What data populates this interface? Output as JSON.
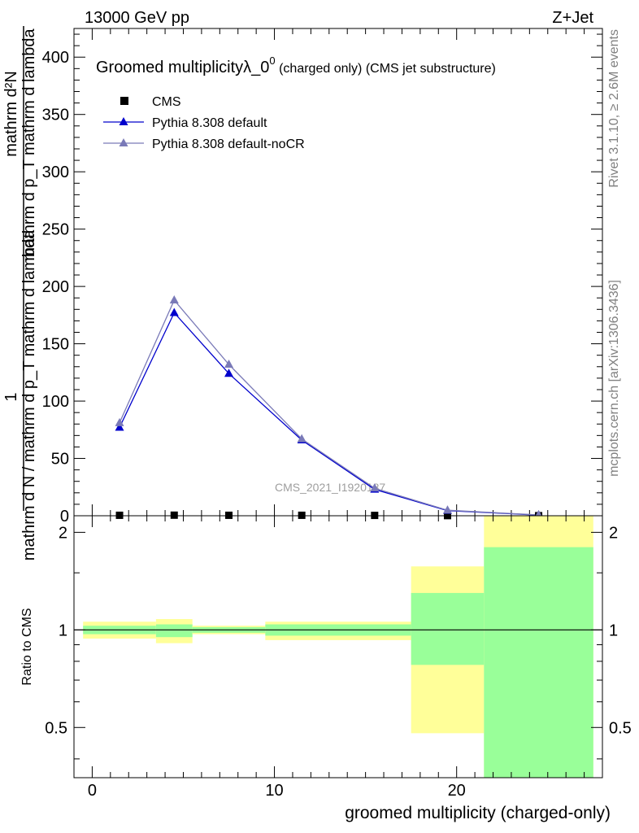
{
  "header": {
    "left": "13000 GeV pp",
    "right": "Z+Jet"
  },
  "side_labels": {
    "rivet": "Rivet 3.1.10, ≥ 2.6M events",
    "mcplots": "mcplots.cern.ch [arXiv:1306.3436]"
  },
  "watermark": "CMS_2021_I1920187",
  "chart_data": [
    {
      "type": "line",
      "title_main": "Groomed multiplicityλ_0",
      "title_sup": "0",
      "title_tail": " (charged only) (CMS jet substructure)",
      "ylabel_top": "mathrm d²N",
      "ylabel_top_sub": "mathrm d p_T mathrm d lambda",
      "ylabel_bottom": "1",
      "ylabel_bottom_sub": "mathrm d N / mathrm d p_T mathrm d lambda",
      "xlim": [
        -1,
        28
      ],
      "ylim": [
        0,
        425
      ],
      "x_ticks": [
        0,
        10,
        20
      ],
      "y_ticks": [
        0,
        50,
        100,
        150,
        200,
        250,
        300,
        350,
        400
      ],
      "grid": false,
      "legend_position": "top-left",
      "series": [
        {
          "name": "CMS",
          "color": "#000000",
          "marker": "square",
          "x": [
            1.5,
            4.5,
            7.5,
            11.5,
            15.5,
            19.5,
            24.5
          ],
          "y": [
            0.4,
            0.5,
            0.4,
            0.4,
            0.3,
            0.1,
            0.05
          ]
        },
        {
          "name": "Pythia 8.308 default",
          "color": "#0000cc",
          "marker": "triangle",
          "x": [
            1.5,
            4.5,
            7.5,
            11.5,
            15.5,
            19.5,
            24.5
          ],
          "y": [
            77,
            177,
            124,
            66,
            23,
            4.5,
            0.6
          ]
        },
        {
          "name": "Pythia 8.308 default-noCR",
          "color": "#7a7ab8",
          "marker": "triangle",
          "x": [
            1.5,
            4.5,
            7.5,
            11.5,
            15.5,
            19.5,
            24.5
          ],
          "y": [
            81,
            188,
            132,
            67,
            24,
            4.8,
            0.7
          ]
        }
      ]
    },
    {
      "type": "area",
      "ylabel": "Ratio to CMS",
      "xlabel": "groomed multiplicity (charged-only)",
      "xlim": [
        -1,
        28
      ],
      "ylim": [
        0.35,
        2.25
      ],
      "y_ticks": [
        0.5,
        1,
        2
      ],
      "x_ticks": [
        0,
        10,
        20
      ],
      "reference_line": 1,
      "band_colors": {
        "inner": "#99ff99",
        "outer": "#ffff99"
      },
      "bins": [
        {
          "x_low": -0.5,
          "x_high": 3.5,
          "inner": [
            0.97,
            1.03
          ],
          "outer": [
            0.94,
            1.06
          ]
        },
        {
          "x_low": 3.5,
          "x_high": 5.5,
          "inner": [
            0.95,
            1.04
          ],
          "outer": [
            0.91,
            1.08
          ]
        },
        {
          "x_low": 5.5,
          "x_high": 9.5,
          "inner": [
            0.98,
            1.02
          ],
          "outer": [
            0.97,
            1.03
          ]
        },
        {
          "x_low": 9.5,
          "x_high": 13.5,
          "inner": [
            0.96,
            1.04
          ],
          "outer": [
            0.93,
            1.06
          ]
        },
        {
          "x_low": 13.5,
          "x_high": 17.5,
          "inner": [
            0.96,
            1.04
          ],
          "outer": [
            0.93,
            1.06
          ]
        },
        {
          "x_low": 17.5,
          "x_high": 21.5,
          "inner": [
            0.78,
            1.3
          ],
          "outer": [
            0.48,
            1.57
          ]
        },
        {
          "x_low": 21.5,
          "x_high": 27.5,
          "inner": [
            0.3,
            1.8
          ],
          "outer": [
            0.3,
            2.25
          ]
        }
      ]
    }
  ]
}
